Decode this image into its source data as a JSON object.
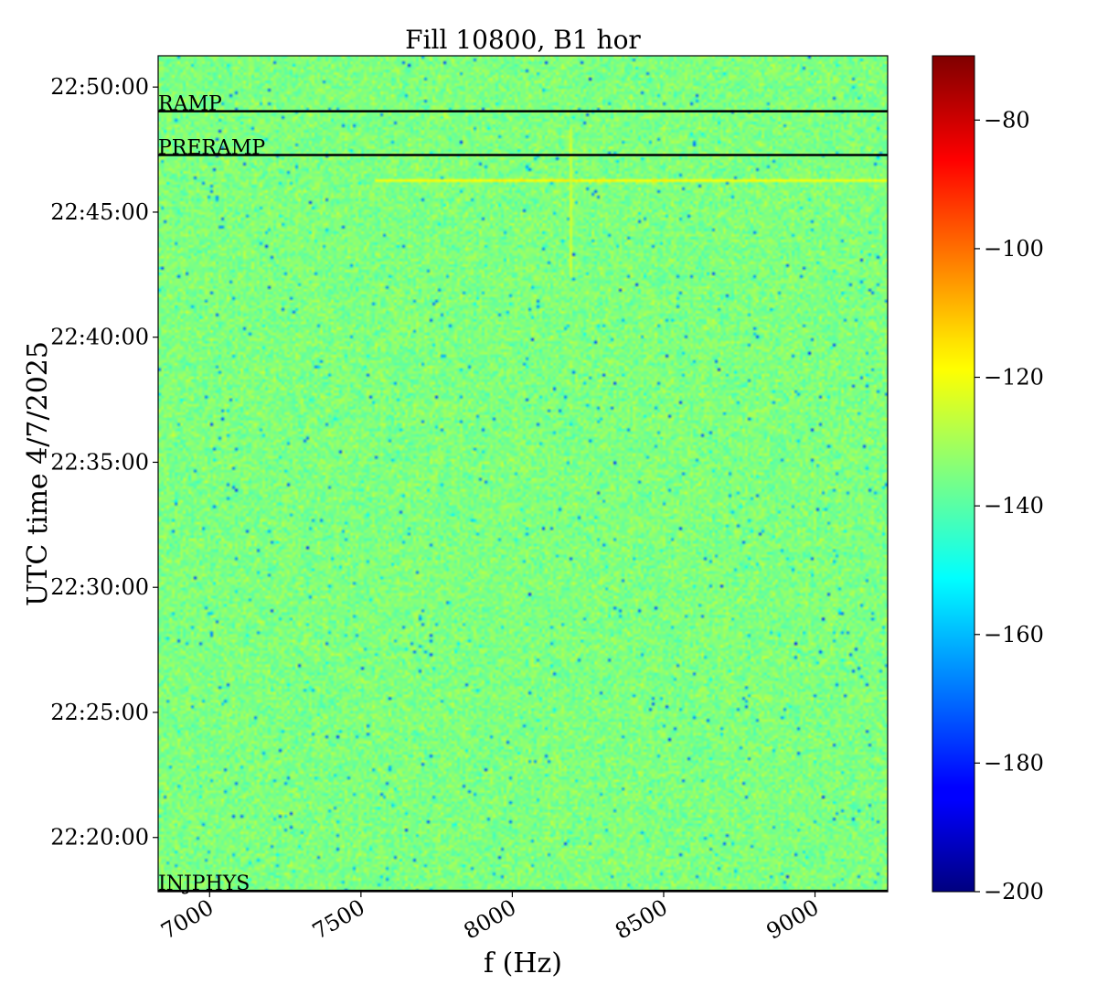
{
  "chart_data": {
    "type": "heatmap",
    "title": "Fill 10800, B1 hor",
    "xlabel": "f (Hz)",
    "ylabel": "UTC time 4/7/2025",
    "xlim": [
      6830,
      9240
    ],
    "ylim": [
      "22:17:50",
      "22:51:15"
    ],
    "x_ticks": [
      {
        "value": 7000,
        "label": "7000"
      },
      {
        "value": 7500,
        "label": "7500"
      },
      {
        "value": 8000,
        "label": "8000"
      },
      {
        "value": 8500,
        "label": "8500"
      },
      {
        "value": 9000,
        "label": "9000"
      }
    ],
    "y_ticks": [
      {
        "value": "22:20:00",
        "label": "22:20:00"
      },
      {
        "value": "22:25:00",
        "label": "22:25:00"
      },
      {
        "value": "22:30:00",
        "label": "22:30:00"
      },
      {
        "value": "22:35:00",
        "label": "22:35:00"
      },
      {
        "value": "22:40:00",
        "label": "22:40:00"
      },
      {
        "value": "22:45:00",
        "label": "22:45:00"
      },
      {
        "value": "22:50:00",
        "label": "22:50:00"
      }
    ],
    "events": [
      {
        "label": "RAMP",
        "time": "22:49:02"
      },
      {
        "label": "PRERAMP",
        "time": "22:47:17"
      },
      {
        "label": "INJPHYS",
        "time": "22:17:52"
      }
    ],
    "features": [
      {
        "type": "horizontal-line",
        "time": "22:46:17",
        "f_from": 7550,
        "f_to": 9240,
        "level": -118
      },
      {
        "type": "vertical-line",
        "f": 8190,
        "time_from": "22:42:30",
        "time_to": "22:48:15",
        "level": -125
      }
    ],
    "background_level": -135,
    "colorbar": {
      "colormap": "jet",
      "range": [
        -200,
        -70
      ],
      "ticks": [
        {
          "value": -80,
          "label": "−80"
        },
        {
          "value": -100,
          "label": "−100"
        },
        {
          "value": -120,
          "label": "−120"
        },
        {
          "value": -140,
          "label": "−140"
        },
        {
          "value": -160,
          "label": "−160"
        },
        {
          "value": -180,
          "label": "−180"
        },
        {
          "value": -200,
          "label": "−200"
        }
      ]
    }
  }
}
